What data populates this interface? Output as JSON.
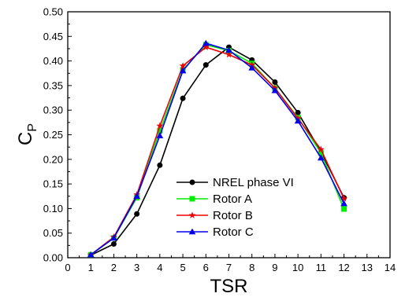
{
  "chart_data": {
    "type": "line",
    "title": "",
    "xlabel": "TSR",
    "ylabel_main": "C",
    "ylabel_sub": "P",
    "xlim": [
      0,
      14
    ],
    "ylim": [
      0.0,
      0.5
    ],
    "x_ticks": [
      0,
      1,
      2,
      3,
      4,
      5,
      6,
      7,
      8,
      9,
      10,
      11,
      12,
      13,
      14
    ],
    "x_tick_labels": [
      "0",
      "1",
      "2",
      "3",
      "4",
      "5",
      "6",
      "7",
      "8",
      "9",
      "10",
      "11",
      "12",
      "13",
      "14"
    ],
    "y_ticks": [
      0.0,
      0.05,
      0.1,
      0.15,
      0.2,
      0.25,
      0.3,
      0.35,
      0.4,
      0.45,
      0.5
    ],
    "y_tick_labels": [
      "0.00",
      "0.05",
      "0.10",
      "0.15",
      "0.20",
      "0.25",
      "0.30",
      "0.35",
      "0.40",
      "0.45",
      "0.50"
    ],
    "grid": false,
    "legend_position": "lower-center",
    "x": [
      1,
      2,
      3,
      4,
      5,
      6,
      7,
      8,
      9,
      10,
      11,
      12
    ],
    "series": [
      {
        "name": "NREL phase VI",
        "color": "#000000",
        "marker": "circle",
        "values": [
          0.005,
          0.028,
          0.089,
          0.188,
          0.324,
          0.392,
          0.428,
          0.402,
          0.357,
          0.295,
          0.215,
          0.122
        ]
      },
      {
        "name": "Rotor A",
        "color": "#00ee00",
        "marker": "square",
        "values": [
          0.006,
          0.04,
          0.122,
          0.258,
          0.382,
          0.433,
          0.421,
          0.395,
          0.345,
          0.285,
          0.213,
          0.099
        ]
      },
      {
        "name": "Rotor B",
        "color": "#ee0000",
        "marker": "star",
        "values": [
          0.006,
          0.042,
          0.128,
          0.268,
          0.39,
          0.428,
          0.413,
          0.392,
          0.345,
          0.283,
          0.22,
          0.12
        ]
      },
      {
        "name": "Rotor C",
        "color": "#0000ee",
        "marker": "triangle",
        "values": [
          0.006,
          0.04,
          0.125,
          0.248,
          0.38,
          0.436,
          0.422,
          0.386,
          0.34,
          0.278,
          0.203,
          0.11
        ]
      }
    ]
  }
}
